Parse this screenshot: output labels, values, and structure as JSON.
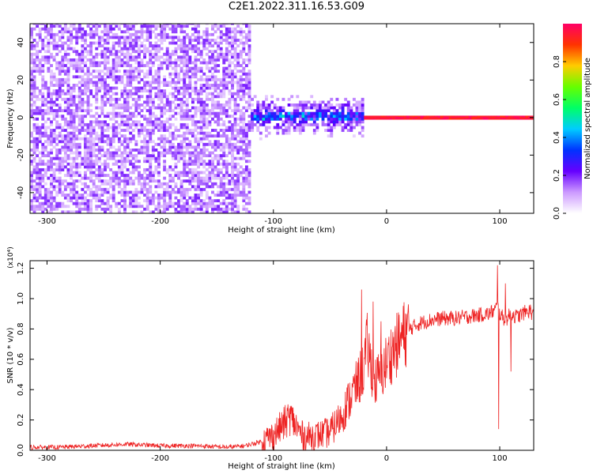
{
  "title": "C2E1.2022.311.16.53.G09",
  "chart_data": [
    {
      "type": "heatmap",
      "xlabel": "Height of straight line (km)",
      "ylabel": "Frequency (Hz)",
      "xlim": [
        -315,
        130
      ],
      "ylim": [
        -51,
        50
      ],
      "xticks": [
        -300,
        -200,
        -100,
        0,
        100
      ],
      "yticks": [
        -40,
        -20,
        0,
        20,
        40
      ],
      "grid": false,
      "colorbar": {
        "label": "Normalized spectral amplitude",
        "range": [
          0,
          1
        ],
        "ticks": [
          "0.0",
          "0.2",
          "0.4",
          "0.6",
          "0.8"
        ],
        "colors": [
          "#ffffff",
          "#cc99ff",
          "#6600ff",
          "#0033ff",
          "#00ccff",
          "#00ff66",
          "#66ff00",
          "#ffcc00",
          "#ff3300",
          "#ff0066"
        ]
      },
      "regions": [
        {
          "x": [
            -315,
            -120
          ],
          "freq": [
            -51,
            50
          ],
          "amplitude": [
            0.05,
            0.2
          ]
        },
        {
          "x": [
            -120,
            -20
          ],
          "freq": [
            -12,
            12
          ],
          "amplitude": [
            0.1,
            0.35
          ]
        },
        {
          "x": [
            -20,
            130
          ],
          "freq": [
            -1,
            1
          ],
          "amplitude": [
            0.9,
            1.0
          ]
        }
      ]
    },
    {
      "type": "line",
      "xlabel": "Height of straight line (km)",
      "ylabel": "SNR (10 * v/v)",
      "ylabel_exponent": "(x10⁴)",
      "xlim": [
        -315,
        130
      ],
      "ylim": [
        0,
        1.25
      ],
      "xticks": [
        -300,
        -200,
        -100,
        0,
        100
      ],
      "yticks": [
        "0.0",
        "0.2",
        "0.4",
        "0.6",
        "0.8",
        "1.0",
        "1.2"
      ],
      "series": [
        {
          "color": "#ee2222",
          "x": [
            -315,
            -290,
            -260,
            -230,
            -200,
            -170,
            -140,
            -125,
            -110,
            -100,
            -95,
            -90,
            -85,
            -80,
            -75,
            -70,
            -60,
            -50,
            -40,
            -35,
            -30,
            -25,
            -20,
            -17,
            -15,
            -10,
            -5,
            0,
            5,
            10,
            15,
            20,
            25,
            30,
            40,
            50,
            60,
            70,
            80,
            90,
            95,
            98,
            100,
            102,
            105,
            110,
            115,
            120,
            125,
            130
          ],
          "y": [
            0.02,
            0.02,
            0.03,
            0.04,
            0.03,
            0.03,
            0.02,
            0.03,
            0.06,
            0.1,
            0.14,
            0.18,
            0.22,
            0.16,
            0.1,
            0.09,
            0.1,
            0.12,
            0.22,
            0.3,
            0.38,
            0.45,
            0.55,
            0.7,
            0.6,
            0.45,
            0.5,
            0.58,
            0.65,
            0.7,
            0.76,
            0.8,
            0.82,
            0.84,
            0.86,
            0.87,
            0.87,
            0.88,
            0.89,
            0.9,
            0.92,
            0.95,
            0.9,
            0.88,
            0.86,
            0.9,
            0.88,
            0.9,
            0.92,
            0.9
          ],
          "spikes": [
            [
              -22,
              1.06
            ],
            [
              -12,
              0.98
            ],
            [
              -5,
              0.85
            ],
            [
              98,
              1.22
            ],
            [
              99,
              0.14
            ],
            [
              105,
              1.1
            ],
            [
              110,
              0.52
            ],
            [
              127,
              0.96
            ]
          ]
        }
      ]
    }
  ]
}
